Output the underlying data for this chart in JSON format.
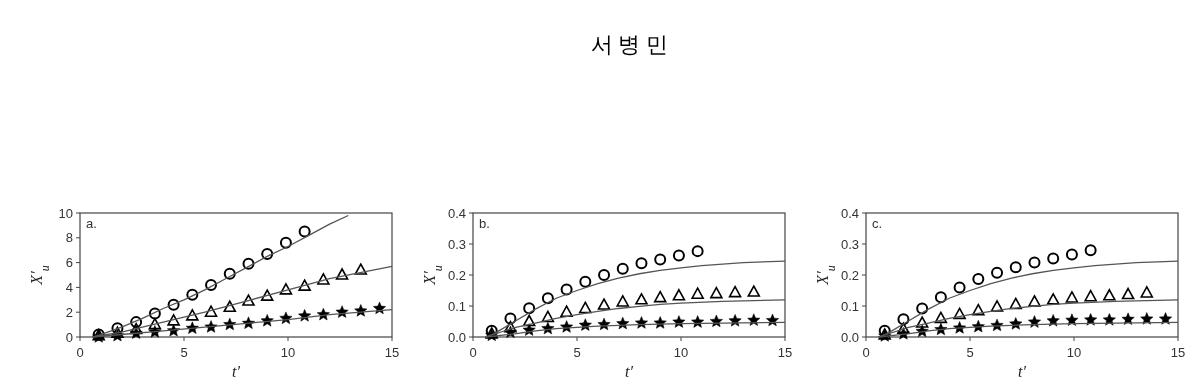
{
  "chart_data": [
    {
      "type": "scatter",
      "xlabel": "t′",
      "ylabel": "X′$_{u}$",
      "annotations": [
        "a."
      ],
      "xlim": [
        0,
        15
      ],
      "xticks": [
        0,
        5,
        10,
        15
      ],
      "ylim": [
        0,
        10
      ],
      "yticks": [
        0,
        2,
        4,
        6,
        8,
        10
      ],
      "series": [
        {
          "type": "scatter",
          "marker": "circle",
          "color": "#000000",
          "x": [
            0.9,
            1.8,
            2.7,
            3.6,
            4.5,
            5.4,
            6.3,
            7.2,
            8.1,
            9.0,
            9.9,
            10.8
          ],
          "values": [
            0.2,
            0.7,
            1.2,
            1.9,
            2.6,
            3.4,
            4.2,
            5.1,
            5.9,
            6.7,
            7.6,
            8.5
          ]
        },
        {
          "type": "scatter",
          "marker": "triangle",
          "color": "#000000",
          "x": [
            0.9,
            1.8,
            2.7,
            3.6,
            4.5,
            5.4,
            6.3,
            7.2,
            8.1,
            9.0,
            9.9,
            10.8,
            11.7,
            12.6,
            13.5
          ],
          "values": [
            0.1,
            0.3,
            0.6,
            1.0,
            1.3,
            1.7,
            2.0,
            2.4,
            2.9,
            3.3,
            3.8,
            4.1,
            4.6,
            5.0,
            5.4
          ]
        },
        {
          "type": "scatter",
          "marker": "star",
          "color": "#000000",
          "x": [
            0.9,
            1.8,
            2.7,
            3.6,
            4.5,
            5.4,
            6.3,
            7.2,
            8.1,
            9.0,
            9.9,
            10.8,
            11.7,
            12.6,
            13.5,
            14.4
          ],
          "values": [
            0.0,
            0.1,
            0.3,
            0.4,
            0.5,
            0.7,
            0.8,
            1.0,
            1.1,
            1.3,
            1.5,
            1.7,
            1.8,
            2.0,
            2.1,
            2.3
          ]
        },
        {
          "type": "line",
          "color": "#555555",
          "x": [
            0.6,
            1,
            2,
            3,
            4,
            5,
            6,
            7,
            8,
            9,
            10,
            11,
            12,
            12.9
          ],
          "values": [
            0,
            0.2,
            0.8,
            1.5,
            2.3,
            3.0,
            3.8,
            4.7,
            5.6,
            6.5,
            7.3,
            8.2,
            9.1,
            9.8
          ]
        },
        {
          "type": "line",
          "color": "#555555",
          "x": [
            0.6,
            2,
            4,
            6,
            8,
            10,
            12,
            15
          ],
          "values": [
            0,
            0.4,
            1.2,
            2.0,
            2.9,
            3.8,
            4.7,
            5.7
          ]
        },
        {
          "type": "line",
          "color": "#555555",
          "x": [
            0.6,
            2,
            4,
            6,
            8,
            10,
            12,
            15
          ],
          "values": [
            0,
            0.2,
            0.5,
            0.8,
            1.1,
            1.4,
            1.8,
            2.2
          ]
        }
      ]
    },
    {
      "type": "scatter",
      "title": "서 병 민",
      "xlabel": "t′",
      "ylabel": "X′$_{u}$",
      "annotations": [
        "b."
      ],
      "xlim": [
        0,
        15
      ],
      "xticks": [
        0,
        5,
        10,
        15
      ],
      "ylim": [
        0,
        0.4
      ],
      "yticks": [
        {
          "value": 0,
          "label": "0.0"
        },
        {
          "value": 0.1,
          "label": "0.1"
        },
        {
          "value": 0.2,
          "label": "0.2"
        },
        {
          "value": 0.3,
          "label": "0.3"
        },
        {
          "value": 0.4,
          "label": "0.4"
        }
      ],
      "series": [
        {
          "type": "scatter",
          "marker": "circle",
          "color": "#000000",
          "x": [
            0.9,
            1.8,
            2.7,
            3.6,
            4.5,
            5.4,
            6.3,
            7.2,
            8.1,
            9.0,
            9.9,
            10.8
          ],
          "values": [
            0.02,
            0.06,
            0.093,
            0.125,
            0.153,
            0.178,
            0.2,
            0.22,
            0.238,
            0.25,
            0.263,
            0.277
          ]
        },
        {
          "type": "scatter",
          "marker": "triangle",
          "color": "#000000",
          "x": [
            0.9,
            1.8,
            2.7,
            3.6,
            4.5,
            5.4,
            6.3,
            7.2,
            8.1,
            9.0,
            9.9,
            10.8,
            11.7,
            12.6,
            13.5
          ],
          "values": [
            0.01,
            0.03,
            0.05,
            0.063,
            0.08,
            0.092,
            0.103,
            0.113,
            0.12,
            0.127,
            0.133,
            0.138,
            0.14,
            0.143,
            0.145
          ]
        },
        {
          "type": "scatter",
          "marker": "star",
          "color": "#000000",
          "x": [
            0.9,
            1.8,
            2.7,
            3.6,
            4.5,
            5.4,
            6.3,
            7.2,
            8.1,
            9.0,
            9.9,
            10.8,
            11.7,
            12.6,
            13.5,
            14.4
          ],
          "values": [
            0.005,
            0.015,
            0.022,
            0.027,
            0.032,
            0.038,
            0.04,
            0.043,
            0.045,
            0.045,
            0.048,
            0.048,
            0.05,
            0.052,
            0.054,
            0.053
          ]
        },
        {
          "type": "line",
          "color": "#555555",
          "x": [
            0.6,
            1,
            2,
            3,
            4,
            5,
            6,
            7,
            8,
            9,
            10,
            11,
            12,
            13,
            15
          ],
          "values": [
            0,
            0.01,
            0.05,
            0.09,
            0.125,
            0.15,
            0.172,
            0.19,
            0.204,
            0.215,
            0.223,
            0.23,
            0.235,
            0.24,
            0.245
          ]
        },
        {
          "type": "line",
          "color": "#555555",
          "x": [
            0.6,
            2,
            3,
            4,
            5,
            6,
            7,
            8,
            9,
            10,
            12,
            15
          ],
          "values": [
            0,
            0.03,
            0.045,
            0.06,
            0.072,
            0.083,
            0.092,
            0.099,
            0.105,
            0.109,
            0.115,
            0.12
          ]
        },
        {
          "type": "line",
          "color": "#555555",
          "x": [
            0.6,
            2,
            3,
            4,
            6,
            8,
            10,
            12,
            15
          ],
          "values": [
            0,
            0.01,
            0.02,
            0.027,
            0.035,
            0.04,
            0.043,
            0.045,
            0.047
          ]
        }
      ]
    },
    {
      "type": "scatter",
      "xlabel": "t′",
      "ylabel": "X′$_{u}$",
      "annotations": [
        "c."
      ],
      "xlim": [
        0,
        15
      ],
      "xticks": [
        0,
        5,
        10,
        15
      ],
      "ylim": [
        0,
        0.4
      ],
      "yticks": [
        {
          "value": 0,
          "label": "0.0"
        },
        {
          "value": 0.1,
          "label": "0.1"
        },
        {
          "value": 0.2,
          "label": "0.2"
        },
        {
          "value": 0.3,
          "label": "0.3"
        },
        {
          "value": 0.4,
          "label": "0.4"
        }
      ],
      "series": [
        {
          "type": "scatter",
          "marker": "circle",
          "color": "#000000",
          "x": [
            0.9,
            1.8,
            2.7,
            3.6,
            4.5,
            5.4,
            6.3,
            7.2,
            8.1,
            9.0,
            9.9,
            10.8
          ],
          "values": [
            0.02,
            0.057,
            0.092,
            0.128,
            0.16,
            0.187,
            0.207,
            0.225,
            0.24,
            0.253,
            0.266,
            0.28
          ]
        },
        {
          "type": "scatter",
          "marker": "triangle",
          "color": "#000000",
          "x": [
            0.9,
            1.8,
            2.7,
            3.6,
            4.5,
            5.4,
            6.3,
            7.2,
            8.1,
            9.0,
            9.9,
            10.8,
            11.7,
            12.6,
            13.5
          ],
          "values": [
            0.007,
            0.025,
            0.045,
            0.06,
            0.073,
            0.085,
            0.097,
            0.105,
            0.113,
            0.12,
            0.126,
            0.13,
            0.133,
            0.137,
            0.142
          ]
        },
        {
          "type": "scatter",
          "marker": "star",
          "color": "#000000",
          "x": [
            0.9,
            1.8,
            2.7,
            3.6,
            4.5,
            5.4,
            6.3,
            7.2,
            8.1,
            9.0,
            9.9,
            10.8,
            11.7,
            12.6,
            13.5,
            14.4
          ],
          "values": [
            0.003,
            0.01,
            0.018,
            0.024,
            0.029,
            0.033,
            0.037,
            0.042,
            0.048,
            0.052,
            0.054,
            0.055,
            0.055,
            0.057,
            0.058,
            0.058
          ]
        },
        {
          "type": "line",
          "color": "#555555",
          "x": [
            0.6,
            1,
            2,
            3,
            4,
            5,
            6,
            7,
            8,
            9,
            10,
            11,
            12,
            13,
            15
          ],
          "values": [
            0,
            0.01,
            0.05,
            0.09,
            0.125,
            0.15,
            0.172,
            0.19,
            0.204,
            0.215,
            0.223,
            0.23,
            0.235,
            0.24,
            0.245
          ]
        },
        {
          "type": "line",
          "color": "#555555",
          "x": [
            0.6,
            2,
            3,
            4,
            5,
            6,
            7,
            8,
            9,
            10,
            12,
            15
          ],
          "values": [
            0,
            0.03,
            0.045,
            0.06,
            0.072,
            0.083,
            0.092,
            0.099,
            0.105,
            0.109,
            0.115,
            0.12
          ]
        },
        {
          "type": "line",
          "color": "#555555",
          "x": [
            0.6,
            2,
            3,
            4,
            6,
            8,
            10,
            12,
            15
          ],
          "values": [
            0,
            0.01,
            0.02,
            0.027,
            0.035,
            0.04,
            0.043,
            0.045,
            0.047
          ]
        }
      ]
    }
  ]
}
